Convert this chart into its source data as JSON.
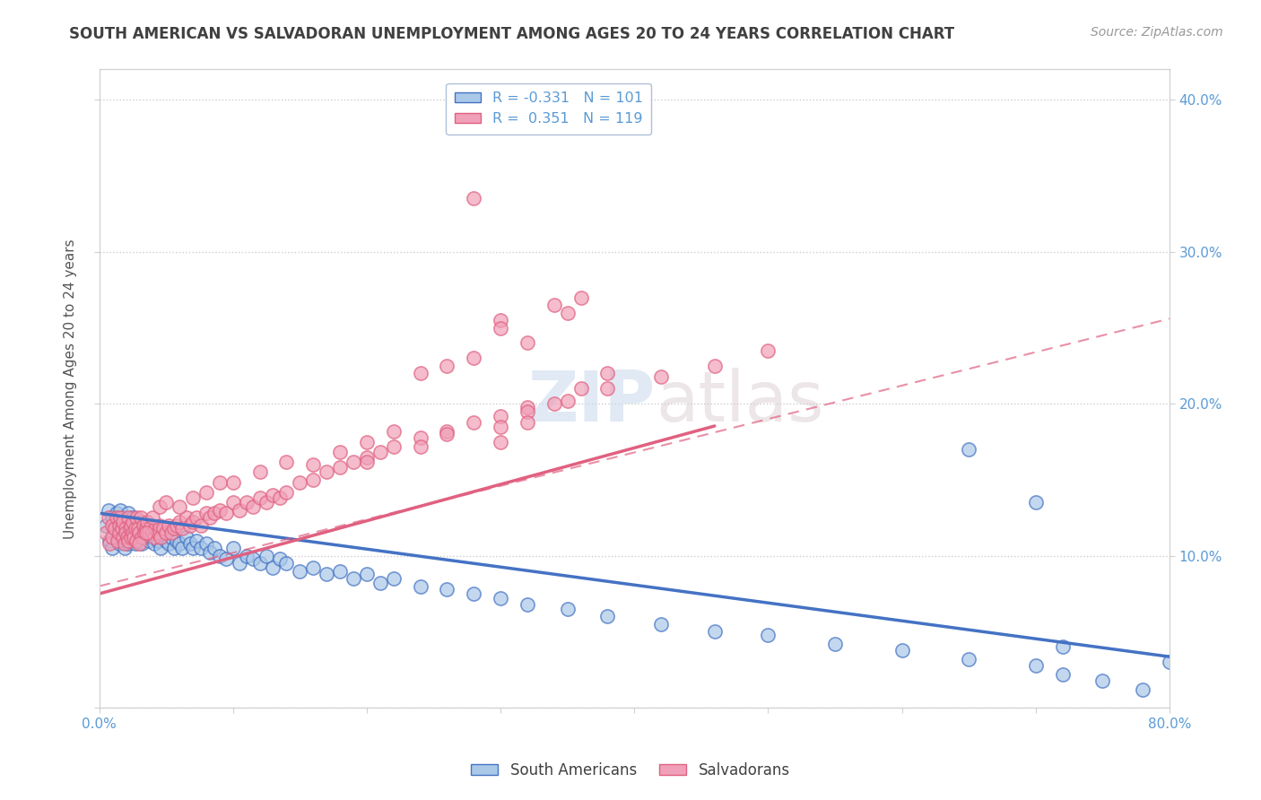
{
  "title": "SOUTH AMERICAN VS SALVADORAN UNEMPLOYMENT AMONG AGES 20 TO 24 YEARS CORRELATION CHART",
  "source": "Source: ZipAtlas.com",
  "ylabel": "Unemployment Among Ages 20 to 24 years",
  "legend_labels": [
    "South Americans",
    "Salvadorans"
  ],
  "legend_r": [
    -0.331,
    0.351
  ],
  "legend_n": [
    101,
    119
  ],
  "blue_color": "#aac8e8",
  "pink_color": "#f0a0b8",
  "blue_line_color": "#4472c4",
  "pink_line_color": "#e06080",
  "title_color": "#404040",
  "axis_label_color": "#5b9bd5",
  "watermark_color": "#d0dff0",
  "xlim": [
    0.0,
    0.8
  ],
  "ylim": [
    0.0,
    0.42
  ],
  "blue_trend": [
    0.128,
    -0.118
  ],
  "pink_solid_trend": [
    0.075,
    0.24
  ],
  "pink_dash_trend": [
    0.08,
    0.22
  ],
  "blue_scatter_x": [
    0.005,
    0.007,
    0.008,
    0.01,
    0.01,
    0.012,
    0.013,
    0.014,
    0.015,
    0.015,
    0.016,
    0.017,
    0.018,
    0.018,
    0.019,
    0.02,
    0.02,
    0.021,
    0.022,
    0.022,
    0.023,
    0.024,
    0.024,
    0.025,
    0.025,
    0.026,
    0.027,
    0.028,
    0.028,
    0.029,
    0.03,
    0.031,
    0.032,
    0.033,
    0.034,
    0.035,
    0.036,
    0.037,
    0.038,
    0.04,
    0.041,
    0.042,
    0.044,
    0.045,
    0.046,
    0.048,
    0.05,
    0.052,
    0.054,
    0.056,
    0.058,
    0.06,
    0.062,
    0.065,
    0.068,
    0.07,
    0.073,
    0.076,
    0.08,
    0.083,
    0.086,
    0.09,
    0.095,
    0.1,
    0.105,
    0.11,
    0.115,
    0.12,
    0.125,
    0.13,
    0.135,
    0.14,
    0.15,
    0.16,
    0.17,
    0.18,
    0.19,
    0.2,
    0.21,
    0.22,
    0.24,
    0.26,
    0.28,
    0.3,
    0.32,
    0.35,
    0.38,
    0.42,
    0.46,
    0.5,
    0.55,
    0.6,
    0.65,
    0.7,
    0.72,
    0.75,
    0.78,
    0.8,
    0.65,
    0.7,
    0.72
  ],
  "blue_scatter_y": [
    0.12,
    0.13,
    0.11,
    0.125,
    0.105,
    0.118,
    0.128,
    0.115,
    0.122,
    0.108,
    0.13,
    0.112,
    0.118,
    0.125,
    0.105,
    0.12,
    0.115,
    0.11,
    0.128,
    0.108,
    0.118,
    0.115,
    0.122,
    0.11,
    0.125,
    0.115,
    0.108,
    0.12,
    0.112,
    0.118,
    0.115,
    0.122,
    0.108,
    0.118,
    0.112,
    0.115,
    0.118,
    0.11,
    0.115,
    0.112,
    0.108,
    0.115,
    0.11,
    0.118,
    0.105,
    0.112,
    0.11,
    0.108,
    0.112,
    0.105,
    0.11,
    0.108,
    0.105,
    0.112,
    0.108,
    0.105,
    0.11,
    0.105,
    0.108,
    0.102,
    0.105,
    0.1,
    0.098,
    0.105,
    0.095,
    0.1,
    0.098,
    0.095,
    0.1,
    0.092,
    0.098,
    0.095,
    0.09,
    0.092,
    0.088,
    0.09,
    0.085,
    0.088,
    0.082,
    0.085,
    0.08,
    0.078,
    0.075,
    0.072,
    0.068,
    0.065,
    0.06,
    0.055,
    0.05,
    0.048,
    0.042,
    0.038,
    0.032,
    0.028,
    0.022,
    0.018,
    0.012,
    0.03,
    0.17,
    0.135,
    0.04
  ],
  "pink_scatter_x": [
    0.005,
    0.007,
    0.008,
    0.01,
    0.01,
    0.012,
    0.013,
    0.014,
    0.015,
    0.015,
    0.016,
    0.017,
    0.018,
    0.018,
    0.019,
    0.02,
    0.02,
    0.021,
    0.022,
    0.022,
    0.023,
    0.024,
    0.024,
    0.025,
    0.025,
    0.026,
    0.027,
    0.028,
    0.028,
    0.029,
    0.03,
    0.031,
    0.032,
    0.033,
    0.034,
    0.035,
    0.036,
    0.037,
    0.038,
    0.04,
    0.041,
    0.042,
    0.044,
    0.045,
    0.046,
    0.048,
    0.05,
    0.052,
    0.054,
    0.056,
    0.058,
    0.06,
    0.062,
    0.065,
    0.068,
    0.07,
    0.073,
    0.076,
    0.08,
    0.083,
    0.086,
    0.09,
    0.095,
    0.1,
    0.105,
    0.11,
    0.115,
    0.12,
    0.125,
    0.13,
    0.135,
    0.14,
    0.15,
    0.16,
    0.17,
    0.18,
    0.19,
    0.2,
    0.21,
    0.22,
    0.24,
    0.26,
    0.28,
    0.3,
    0.32,
    0.35,
    0.38,
    0.42,
    0.46,
    0.5,
    0.3,
    0.32,
    0.34,
    0.36,
    0.38,
    0.24,
    0.26,
    0.28,
    0.16,
    0.18,
    0.2,
    0.22,
    0.1,
    0.12,
    0.14,
    0.06,
    0.07,
    0.08,
    0.09,
    0.04,
    0.045,
    0.05,
    0.03,
    0.035,
    0.3,
    0.32,
    0.24,
    0.26,
    0.2
  ],
  "pink_scatter_y": [
    0.115,
    0.125,
    0.108,
    0.12,
    0.112,
    0.118,
    0.125,
    0.11,
    0.12,
    0.115,
    0.125,
    0.118,
    0.112,
    0.122,
    0.108,
    0.118,
    0.115,
    0.112,
    0.125,
    0.11,
    0.118,
    0.112,
    0.12,
    0.115,
    0.122,
    0.112,
    0.118,
    0.125,
    0.11,
    0.118,
    0.115,
    0.125,
    0.112,
    0.12,
    0.115,
    0.118,
    0.122,
    0.115,
    0.118,
    0.115,
    0.112,
    0.118,
    0.115,
    0.12,
    0.112,
    0.118,
    0.115,
    0.12,
    0.115,
    0.118,
    0.12,
    0.122,
    0.118,
    0.125,
    0.12,
    0.122,
    0.125,
    0.12,
    0.128,
    0.125,
    0.128,
    0.13,
    0.128,
    0.135,
    0.13,
    0.135,
    0.132,
    0.138,
    0.135,
    0.14,
    0.138,
    0.142,
    0.148,
    0.15,
    0.155,
    0.158,
    0.162,
    0.165,
    0.168,
    0.172,
    0.178,
    0.182,
    0.188,
    0.192,
    0.198,
    0.202,
    0.21,
    0.218,
    0.225,
    0.235,
    0.185,
    0.195,
    0.2,
    0.21,
    0.22,
    0.22,
    0.225,
    0.23,
    0.16,
    0.168,
    0.175,
    0.182,
    0.148,
    0.155,
    0.162,
    0.132,
    0.138,
    0.142,
    0.148,
    0.125,
    0.132,
    0.135,
    0.108,
    0.115,
    0.175,
    0.188,
    0.172,
    0.18,
    0.162
  ],
  "pink_outlier_x": [
    0.28
  ],
  "pink_outlier_y": [
    0.335
  ],
  "pink_cluster_x": [
    0.3,
    0.34,
    0.32,
    0.3,
    0.35,
    0.36
  ],
  "pink_cluster_y": [
    0.255,
    0.265,
    0.24,
    0.25,
    0.26,
    0.27
  ]
}
